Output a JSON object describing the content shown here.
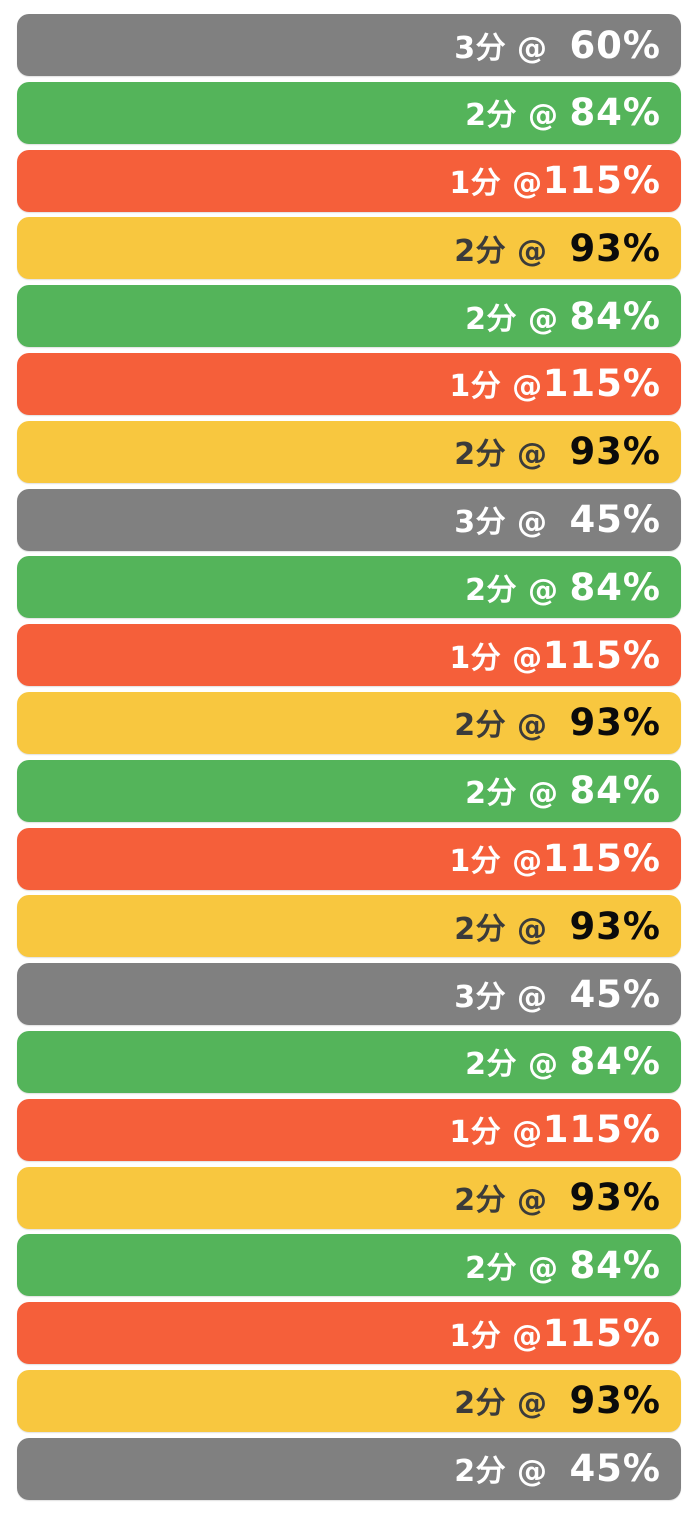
{
  "palette": {
    "gray": "#808080",
    "green": "#54b45a",
    "red": "#f55f3a",
    "yellow": "#f8c73f",
    "light_text": "#ffffff",
    "dark_text": "#3b3b3b",
    "black_text": "#0b0b0b",
    "background": "#ffffff"
  },
  "rows": [
    {
      "zone": "gray",
      "duration_label": "3分 @  ",
      "percent_label": "60%"
    },
    {
      "zone": "green",
      "duration_label": "2分 @ ",
      "percent_label": "84%"
    },
    {
      "zone": "red",
      "duration_label": "1分 @",
      "percent_label": "115%"
    },
    {
      "zone": "yellow",
      "duration_label": "2分 @  ",
      "percent_label": "93%"
    },
    {
      "zone": "green",
      "duration_label": "2分 @ ",
      "percent_label": "84%"
    },
    {
      "zone": "red",
      "duration_label": "1分 @",
      "percent_label": "115%"
    },
    {
      "zone": "yellow",
      "duration_label": "2分 @  ",
      "percent_label": "93%"
    },
    {
      "zone": "gray",
      "duration_label": "3分 @  ",
      "percent_label": "45%"
    },
    {
      "zone": "green",
      "duration_label": "2分 @ ",
      "percent_label": "84%"
    },
    {
      "zone": "red",
      "duration_label": "1分 @",
      "percent_label": "115%"
    },
    {
      "zone": "yellow",
      "duration_label": "2分 @  ",
      "percent_label": "93%"
    },
    {
      "zone": "green",
      "duration_label": "2分 @ ",
      "percent_label": "84%"
    },
    {
      "zone": "red",
      "duration_label": "1分 @",
      "percent_label": "115%"
    },
    {
      "zone": "yellow",
      "duration_label": "2分 @  ",
      "percent_label": "93%"
    },
    {
      "zone": "gray",
      "duration_label": "3分 @  ",
      "percent_label": "45%"
    },
    {
      "zone": "green",
      "duration_label": "2分 @ ",
      "percent_label": "84%"
    },
    {
      "zone": "red",
      "duration_label": "1分 @",
      "percent_label": "115%"
    },
    {
      "zone": "yellow",
      "duration_label": "2分 @  ",
      "percent_label": "93%"
    },
    {
      "zone": "green",
      "duration_label": "2分 @ ",
      "percent_label": "84%"
    },
    {
      "zone": "red",
      "duration_label": "1分 @",
      "percent_label": "115%"
    },
    {
      "zone": "yellow",
      "duration_label": "2分 @  ",
      "percent_label": "93%"
    },
    {
      "zone": "gray",
      "duration_label": "2分 @  ",
      "percent_label": "45%"
    }
  ],
  "chart_data": {
    "type": "bar",
    "orientation": "horizontal",
    "title": "",
    "duration_unit_label": "分",
    "intensity_unit_label": "%",
    "intervals": [
      {
        "minutes": 3,
        "intensity_pct": 60,
        "zone": "gray"
      },
      {
        "minutes": 2,
        "intensity_pct": 84,
        "zone": "green"
      },
      {
        "minutes": 1,
        "intensity_pct": 115,
        "zone": "red"
      },
      {
        "minutes": 2,
        "intensity_pct": 93,
        "zone": "yellow"
      },
      {
        "minutes": 2,
        "intensity_pct": 84,
        "zone": "green"
      },
      {
        "minutes": 1,
        "intensity_pct": 115,
        "zone": "red"
      },
      {
        "minutes": 2,
        "intensity_pct": 93,
        "zone": "yellow"
      },
      {
        "minutes": 3,
        "intensity_pct": 45,
        "zone": "gray"
      },
      {
        "minutes": 2,
        "intensity_pct": 84,
        "zone": "green"
      },
      {
        "minutes": 1,
        "intensity_pct": 115,
        "zone": "red"
      },
      {
        "minutes": 2,
        "intensity_pct": 93,
        "zone": "yellow"
      },
      {
        "minutes": 2,
        "intensity_pct": 84,
        "zone": "green"
      },
      {
        "minutes": 1,
        "intensity_pct": 115,
        "zone": "red"
      },
      {
        "minutes": 2,
        "intensity_pct": 93,
        "zone": "yellow"
      },
      {
        "minutes": 3,
        "intensity_pct": 45,
        "zone": "gray"
      },
      {
        "minutes": 2,
        "intensity_pct": 84,
        "zone": "green"
      },
      {
        "minutes": 1,
        "intensity_pct": 115,
        "zone": "red"
      },
      {
        "minutes": 2,
        "intensity_pct": 93,
        "zone": "yellow"
      },
      {
        "minutes": 2,
        "intensity_pct": 84,
        "zone": "green"
      },
      {
        "minutes": 1,
        "intensity_pct": 115,
        "zone": "red"
      },
      {
        "minutes": 2,
        "intensity_pct": 93,
        "zone": "yellow"
      },
      {
        "minutes": 2,
        "intensity_pct": 45,
        "zone": "gray"
      }
    ]
  }
}
